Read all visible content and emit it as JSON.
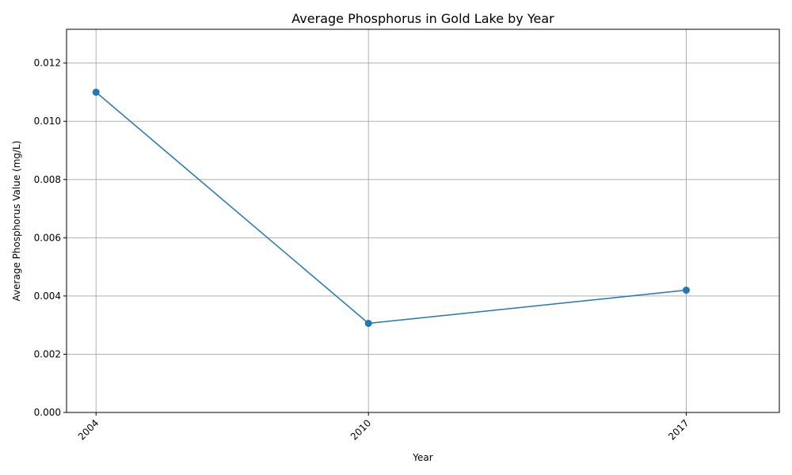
{
  "chart_data": {
    "type": "line",
    "title": "Average Phosphorus in Gold Lake by Year",
    "xlabel": "Year",
    "ylabel": "Average Phosphorus Value (mg/L)",
    "x": [
      2004,
      2010,
      2017
    ],
    "x_tick_labels": [
      "2004",
      "2010",
      "2017"
    ],
    "series": [
      {
        "values": [
          0.011,
          0.00306,
          0.0042
        ],
        "color": "#1f77b4",
        "marker": "circle"
      }
    ],
    "xlim": [
      2003.35,
      2019.05
    ],
    "ylim": [
      0,
      0.01316
    ],
    "y_ticks": [
      0,
      0.002,
      0.004,
      0.006,
      0.008,
      0.01,
      0.012
    ],
    "y_tick_labels": [
      "0.000",
      "0.002",
      "0.004",
      "0.006",
      "0.008",
      "0.010",
      "0.012"
    ],
    "grid": true,
    "legend": "none"
  }
}
